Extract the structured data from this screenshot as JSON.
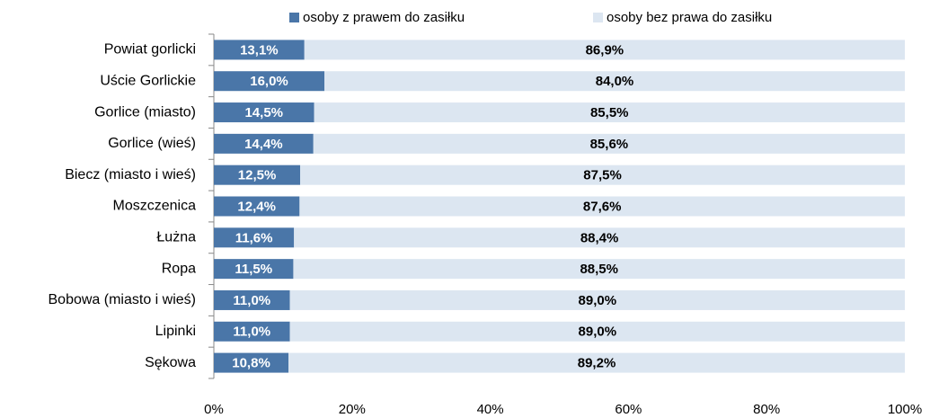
{
  "chart_data": {
    "type": "stacked_bar_horizontal",
    "categories": [
      "Powiat gorlicki",
      "Uście Gorlickie",
      "Gorlice (miasto)",
      "Gorlice (wieś)",
      "Biecz (miasto  i wieś)",
      "Moszczenica",
      "Łużna",
      "Ropa",
      "Bobowa (miasto  i wieś)",
      "Lipinki",
      "Sękowa"
    ],
    "series": [
      {
        "name": "osoby z prawem do zasiłku",
        "color": "#4a76a8",
        "values": [
          13.1,
          16.0,
          14.5,
          14.4,
          12.5,
          12.4,
          11.6,
          11.5,
          11.0,
          11.0,
          10.8
        ],
        "value_labels": [
          "13,1%",
          "16,0%",
          "14,5%",
          "14,4%",
          "12,5%",
          "12,4%",
          "11,6%",
          "11,5%",
          "11,0%",
          "11,0%",
          "10,8%"
        ]
      },
      {
        "name": "osoby bez prawa do zasiłku",
        "color": "#dce6f1",
        "values": [
          86.9,
          84.0,
          85.5,
          85.6,
          87.5,
          87.6,
          88.4,
          88.5,
          89.0,
          89.0,
          89.2
        ],
        "value_labels": [
          "86,9%",
          "84,0%",
          "85,5%",
          "85,6%",
          "87,5%",
          "87,6%",
          "88,4%",
          "88,5%",
          "89,0%",
          "89,0%",
          "89,2%"
        ]
      }
    ],
    "xlim": [
      0,
      100
    ],
    "xticks": [
      {
        "value": 0,
        "label": "0%"
      },
      {
        "value": 20,
        "label": "20%"
      },
      {
        "value": 40,
        "label": "40%"
      },
      {
        "value": 60,
        "label": "60%"
      },
      {
        "value": 80,
        "label": "80%"
      },
      {
        "value": 100,
        "label": "100%"
      }
    ],
    "legend": "top"
  }
}
